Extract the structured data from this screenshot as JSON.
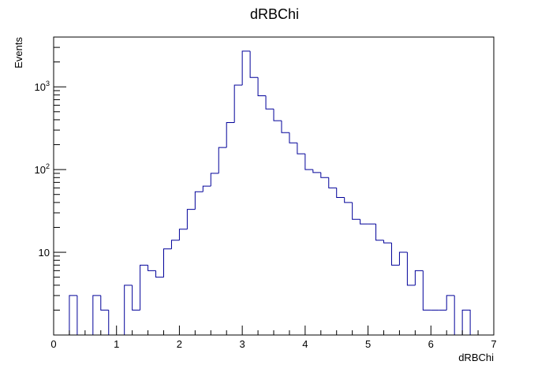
{
  "chart_data": {
    "type": "histogram",
    "title": "dRBChi",
    "xlabel": "dRBChi",
    "ylabel": "Events",
    "log_y": true,
    "xlim": [
      0,
      7
    ],
    "ylim": [
      1.0,
      4000
    ],
    "x_major_ticks": [
      0,
      1,
      2,
      3,
      4,
      5,
      6,
      7
    ],
    "x_minor_step": 0.25,
    "y_major_ticks": [
      {
        "value": 10,
        "label": "10",
        "sup": ""
      },
      {
        "value": 100,
        "label": "10",
        "sup": "2"
      },
      {
        "value": 1000,
        "label": "10",
        "sup": "3"
      }
    ],
    "bin_width": 0.125,
    "line_color": "#000099",
    "values": [
      0,
      0,
      3,
      0,
      0,
      3,
      2,
      0,
      0,
      4,
      2,
      7,
      6,
      5,
      11,
      14,
      19,
      33,
      54,
      63,
      90,
      185,
      370,
      1050,
      2700,
      1300,
      780,
      540,
      390,
      280,
      210,
      155,
      100,
      92,
      80,
      60,
      46,
      40,
      25,
      22,
      22,
      14,
      13,
      7,
      10,
      4,
      6,
      2,
      2,
      2,
      3,
      1,
      2
    ]
  }
}
